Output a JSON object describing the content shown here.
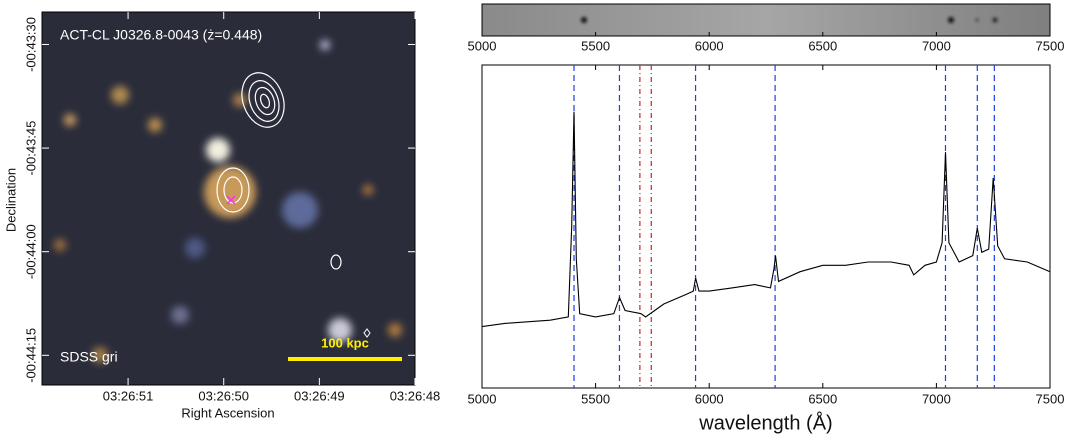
{
  "chart_data": [
    {
      "type": "image",
      "annotations": [
        "ACT-CL J0326.8-0043 (ż=0.448)",
        "SDSS gri",
        "100 kpc"
      ],
      "xlabel": "Right Ascension",
      "ylabel": "Declination",
      "xlim": [
        51.9,
        48.0
      ],
      "xticks": [
        {
          "value": 51,
          "label": "03:26:51"
        },
        {
          "value": 50,
          "label": "03:26:50"
        },
        {
          "value": 49,
          "label": "03:26:49"
        },
        {
          "value": 48,
          "label": "03:26:48"
        }
      ],
      "ylim": [
        79.3,
        25.3
      ],
      "yticks": [
        {
          "value": 30,
          "label": "-00:43:30"
        },
        {
          "value": 45,
          "label": "-00:43:45"
        },
        {
          "value": 60,
          "label": "-00:44:00"
        },
        {
          "value": 75,
          "label": "-00:44:15"
        }
      ]
    },
    {
      "type": "strip",
      "xlim": [
        5000,
        7500
      ],
      "xticks": [
        5000,
        5500,
        6000,
        6500,
        7000,
        7500
      ]
    },
    {
      "type": "line",
      "xlabel": "wavelength (Å)",
      "xlim": [
        5000,
        7500
      ],
      "xticks": [
        5000,
        5500,
        6000,
        6500,
        7000,
        7500
      ],
      "ylim": [
        0,
        10
      ],
      "color": "#000000",
      "x": [
        5000,
        5100,
        5200,
        5300,
        5380,
        5395,
        5405,
        5415,
        5430,
        5500,
        5580,
        5605,
        5630,
        5700,
        5720,
        5760,
        5800,
        5900,
        5930,
        5940,
        5955,
        6000,
        6100,
        6200,
        6270,
        6285,
        6292,
        6305,
        6400,
        6500,
        6600,
        6700,
        6800,
        6880,
        6900,
        6950,
        7000,
        7025,
        7040,
        7055,
        7100,
        7160,
        7180,
        7200,
        7230,
        7250,
        7270,
        7300,
        7400,
        7500
      ],
      "values": [
        1.9,
        2.0,
        2.05,
        2.1,
        2.2,
        5.0,
        8.55,
        4.0,
        2.3,
        2.2,
        2.3,
        2.8,
        2.4,
        2.3,
        2.2,
        2.4,
        2.6,
        2.9,
        3.0,
        3.4,
        3.0,
        3.0,
        3.1,
        3.2,
        3.1,
        3.7,
        4.1,
        3.3,
        3.6,
        3.8,
        3.8,
        3.9,
        3.9,
        3.8,
        3.5,
        3.8,
        3.9,
        4.5,
        7.3,
        4.5,
        3.9,
        4.1,
        4.95,
        4.2,
        4.3,
        6.5,
        4.4,
        4.0,
        3.9,
        3.6
      ],
      "vlines": [
        {
          "color": "#1f3fe0",
          "dash": "6 4",
          "x": [
            5405,
            5605,
            5940,
            6290,
            7040,
            7180,
            7255
          ]
        },
        {
          "color": "#cc2222",
          "dash": "5 3 1 3",
          "x": [
            5695,
            5745
          ]
        }
      ]
    }
  ]
}
